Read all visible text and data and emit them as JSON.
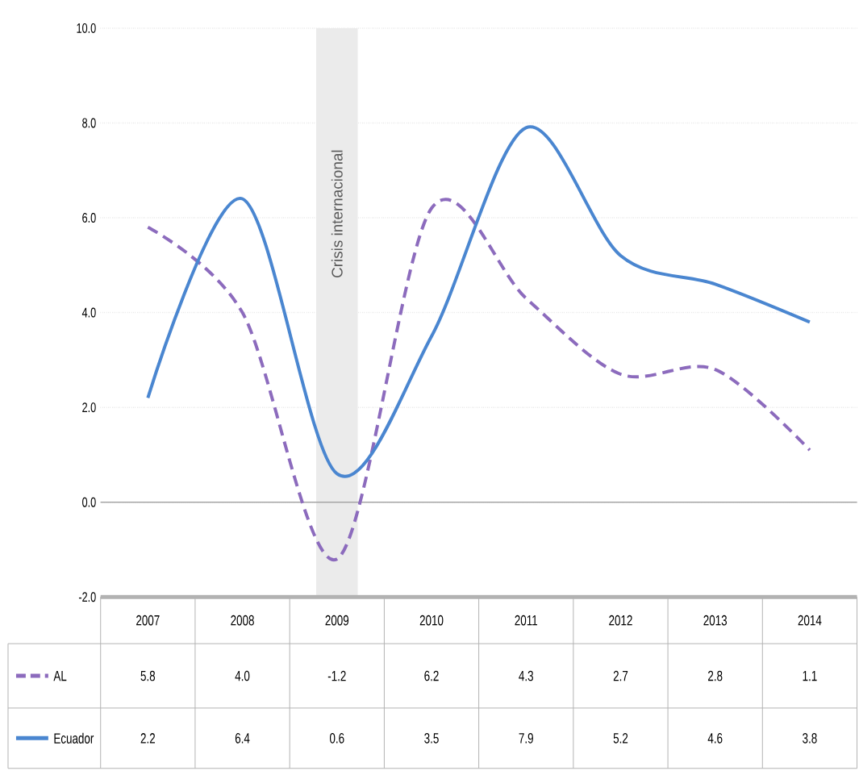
{
  "chart_data": {
    "type": "line",
    "categories": [
      "2007",
      "2008",
      "2009",
      "2010",
      "2011",
      "2012",
      "2013",
      "2014"
    ],
    "series": [
      {
        "name": "AL",
        "color": "#8c6bbd",
        "line_style": "dashed",
        "values": [
          5.8,
          4.0,
          -1.2,
          6.2,
          4.3,
          2.7,
          2.8,
          1.1
        ],
        "value_labels": [
          "5.8",
          "4.0",
          "-1.2",
          "6.2",
          "4.3",
          "2.7",
          "2.8",
          "1.1"
        ]
      },
      {
        "name": "Ecuador",
        "color": "#4a86d0",
        "line_style": "solid",
        "values": [
          2.2,
          6.4,
          0.6,
          3.5,
          7.9,
          5.2,
          4.6,
          3.8
        ],
        "value_labels": [
          "2.2",
          "6.4",
          "0.6",
          "3.5",
          "7.9",
          "5.2",
          "4.6",
          "3.8"
        ]
      }
    ],
    "ylim": [
      -2,
      10
    ],
    "yticks": [
      {
        "value": -2,
        "label": "-2.0"
      },
      {
        "value": 0,
        "label": "0.0"
      },
      {
        "value": 2,
        "label": "2.0"
      },
      {
        "value": 4,
        "label": "4.0"
      },
      {
        "value": 6,
        "label": "6.0"
      },
      {
        "value": 8,
        "label": "8.0"
      },
      {
        "value": 10,
        "label": "10.0"
      }
    ],
    "grid": "y",
    "bands": [
      {
        "axis": "x",
        "from": "2009",
        "to": "2009",
        "label": "Crisis internacional",
        "color": "#ebebeb"
      }
    ],
    "legend": "bottom",
    "marker": "none"
  }
}
